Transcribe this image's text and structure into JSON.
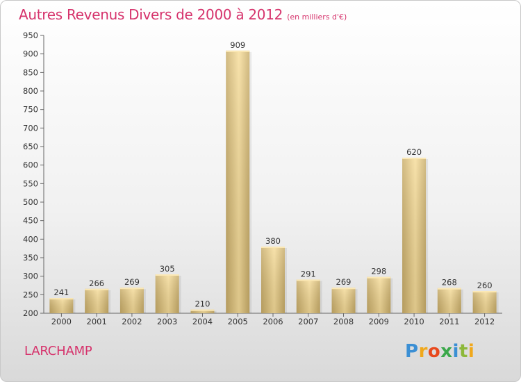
{
  "title": "Autres Revenus Divers de 2000 à 2012",
  "subtitle": "(en milliers d'€)",
  "commune": "LARCHAMP",
  "logo": {
    "text": "Proxiti",
    "colors": [
      "#3b8fd4",
      "#f0a81c",
      "#e8491d",
      "#3aa84a",
      "#8db83a"
    ]
  },
  "colors": {
    "bar_light": "#f7dd9a",
    "bar_dark": "#c8ac68",
    "title": "#d6336c"
  },
  "chart_data": {
    "type": "bar",
    "title": "Autres Revenus Divers de 2000 à 2012",
    "subtitle": "(en milliers d'€)",
    "categories": [
      "2000",
      "2001",
      "2002",
      "2003",
      "2004",
      "2005",
      "2006",
      "2007",
      "2008",
      "2009",
      "2010",
      "2011",
      "2012"
    ],
    "values": [
      241,
      266,
      269,
      305,
      210,
      909,
      380,
      291,
      269,
      298,
      620,
      268,
      260
    ],
    "ylim": [
      200,
      950
    ],
    "yticks": [
      200,
      250,
      300,
      350,
      400,
      450,
      500,
      550,
      600,
      650,
      700,
      750,
      800,
      850,
      900,
      950
    ],
    "grid": false,
    "xlabel": "",
    "ylabel": ""
  }
}
